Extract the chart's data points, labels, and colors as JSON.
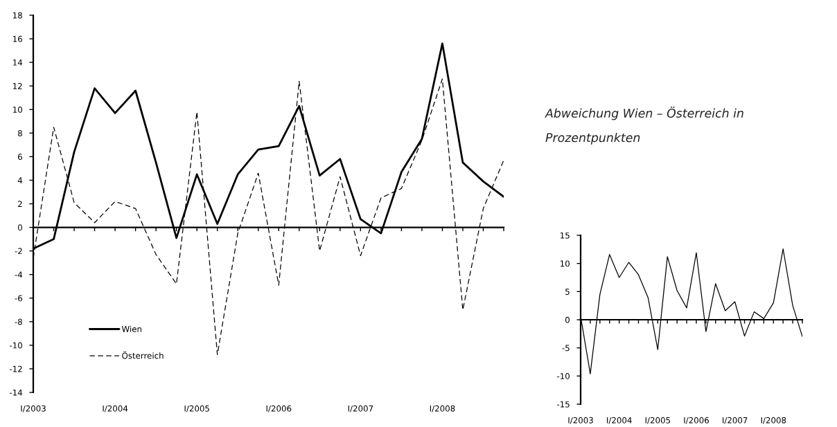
{
  "chart_data": [
    {
      "type": "line",
      "categories": [
        "I/2003",
        null,
        null,
        null,
        "I/2004",
        null,
        null,
        null,
        "I/2005",
        null,
        null,
        null,
        "I/2006",
        null,
        null,
        null,
        "I/2007",
        null,
        null,
        null,
        "I/2008",
        null,
        null,
        null
      ],
      "series": [
        {
          "name": "Wien",
          "color": "#000000",
          "line_style": "solid",
          "values": [
            -1.8,
            -1.0,
            6.4,
            11.8,
            9.7,
            11.6,
            5.5,
            -0.9,
            4.5,
            0.3,
            4.5,
            6.6,
            6.9,
            10.3,
            4.4,
            5.8,
            0.7,
            -0.5,
            4.7,
            7.5,
            15.6,
            5.5,
            3.9,
            2.6
          ]
        },
        {
          "name": "Österreich",
          "color": "#000000",
          "line_style": "dashed",
          "values": [
            -2.6,
            8.5,
            2.1,
            0.4,
            2.2,
            1.6,
            -2.3,
            -4.8,
            9.8,
            -10.8,
            -0.5,
            4.6,
            -4.9,
            12.4,
            -2.0,
            4.3,
            -2.4,
            2.5,
            3.3,
            7.4,
            12.6,
            -7.0,
            1.6,
            5.7
          ]
        }
      ],
      "ylim": [
        -14,
        18
      ],
      "yticks": [
        -14,
        -12,
        -10,
        -8,
        -6,
        -4,
        -2,
        0,
        2,
        4,
        6,
        8,
        10,
        12,
        14,
        16,
        18
      ],
      "legend": "bottom left"
    },
    {
      "type": "line",
      "title": "Abweichung Wien – Österreich in Prozentpunkten",
      "categories": [
        "I/2003",
        null,
        null,
        null,
        "I/2004",
        null,
        null,
        null,
        "I/2005",
        null,
        null,
        null,
        "I/2006",
        null,
        null,
        null,
        "I/2007",
        null,
        null,
        null,
        "I/2008",
        null,
        null,
        null
      ],
      "series": [
        {
          "color": "#000000",
          "line_style": "solid",
          "values": [
            0.6,
            -9.6,
            4.5,
            11.6,
            7.5,
            10.2,
            8.0,
            3.9,
            -5.3,
            11.2,
            5.2,
            2.1,
            11.9,
            -2.1,
            6.4,
            1.6,
            3.2,
            -2.9,
            1.4,
            0.2,
            3.0,
            12.6,
            2.5,
            -3.0
          ]
        }
      ],
      "ylim": [
        -15,
        15
      ],
      "yticks": [
        -15,
        -10,
        -5,
        0,
        5,
        10,
        15
      ]
    }
  ]
}
